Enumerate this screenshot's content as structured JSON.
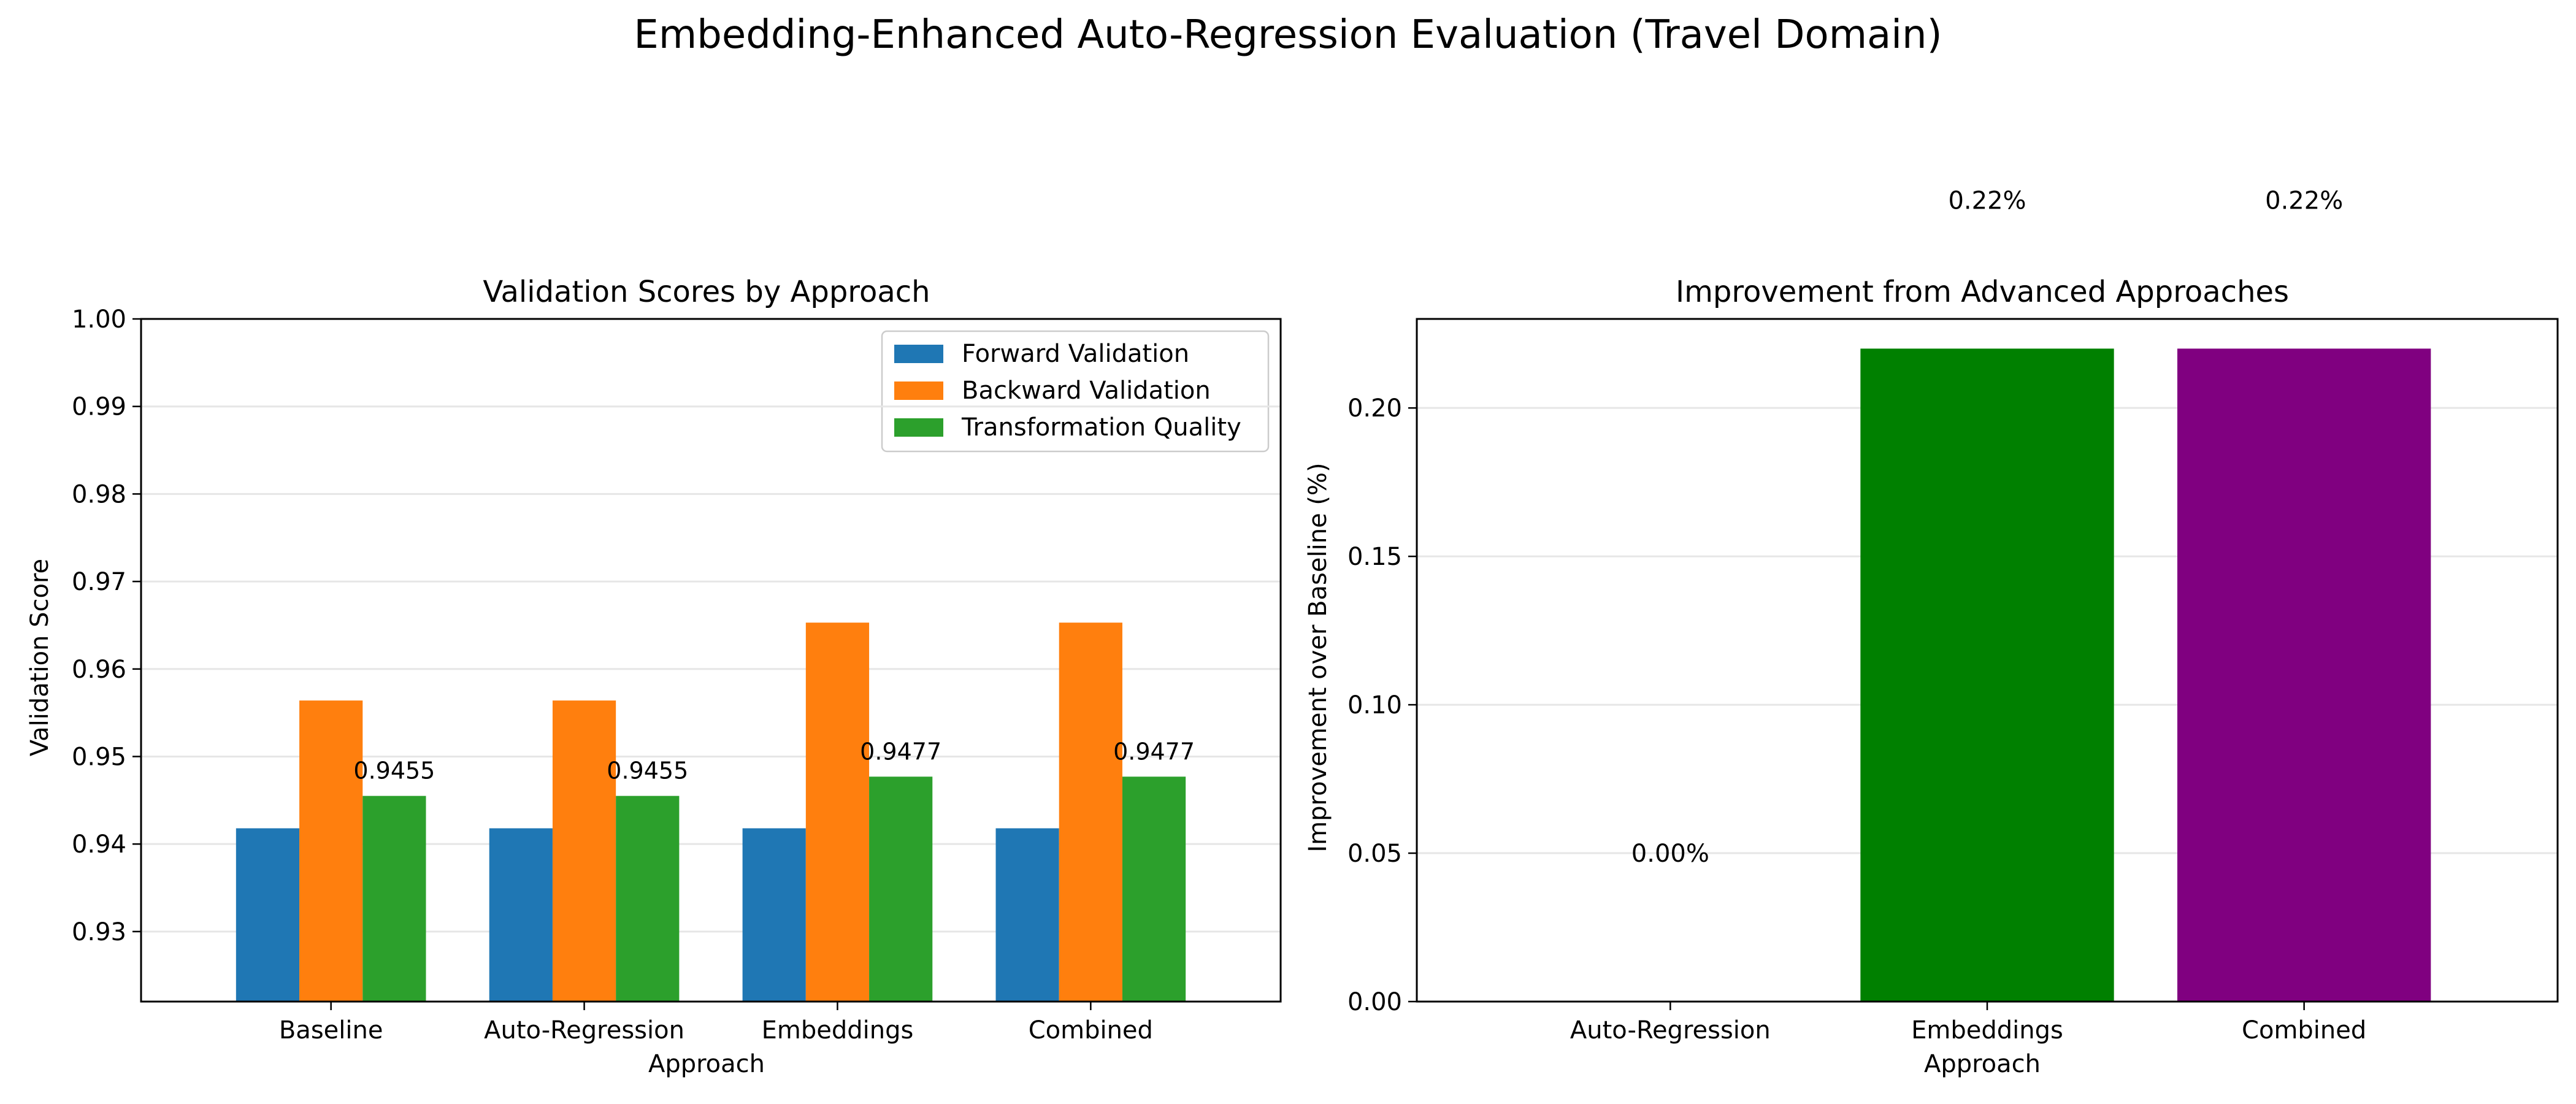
{
  "suptitle": "Embedding-Enhanced Auto-Regression Evaluation (Travel Domain)",
  "colors": {
    "forward": "#1f77b4",
    "backward": "#ff7f0e",
    "quality": "#2ca02c",
    "embeddings": "#008000",
    "combined": "#800080",
    "grid": "#e6e6e6"
  },
  "chart_data": [
    {
      "type": "bar",
      "title": "Validation Scores by Approach",
      "xlabel": "Approach",
      "ylabel": "Validation Score",
      "ylim": [
        0.922,
        1.0
      ],
      "yticks": [
        0.93,
        0.94,
        0.95,
        0.96,
        0.97,
        0.98,
        0.99,
        1.0
      ],
      "ytick_labels": [
        "0.93",
        "0.94",
        "0.95",
        "0.96",
        "0.97",
        "0.98",
        "0.99",
        "1.00"
      ],
      "categories": [
        "Baseline",
        "Auto-Regression",
        "Embeddings",
        "Combined"
      ],
      "series": [
        {
          "name": "Forward Validation",
          "values": [
            0.9418,
            0.9418,
            0.9418,
            0.9418
          ]
        },
        {
          "name": "Backward Validation",
          "values": [
            0.9564,
            0.9564,
            0.9653,
            0.9653
          ]
        },
        {
          "name": "Transformation Quality",
          "values": [
            0.9455,
            0.9455,
            0.9477,
            0.9477
          ]
        }
      ],
      "data_labels": [
        "0.9455",
        "0.9455",
        "0.9477",
        "0.9477"
      ],
      "legend": "top-right",
      "grid": "y"
    },
    {
      "type": "bar",
      "title": "Improvement from Advanced Approaches",
      "xlabel": "Approach",
      "ylabel": "Improvement over Baseline (%)",
      "ylim": [
        0,
        0.23
      ],
      "yticks": [
        0.0,
        0.05,
        0.1,
        0.15,
        0.2
      ],
      "ytick_labels": [
        "0.00",
        "0.05",
        "0.10",
        "0.15",
        "0.20"
      ],
      "categories": [
        "Auto-Regression",
        "Embeddings",
        "Combined"
      ],
      "values": [
        0.0,
        0.22,
        0.22
      ],
      "data_labels": [
        "0.00%",
        "0.22%",
        "0.22%"
      ],
      "label_positions": [
        0.05,
        0.27,
        0.27
      ],
      "grid": "y"
    }
  ]
}
